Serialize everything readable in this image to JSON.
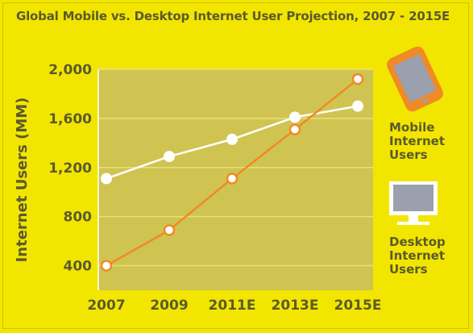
{
  "title": "Global Mobile vs. Desktop Internet User Projection, 2007 - 2015E",
  "colors": {
    "background": "#f2e600",
    "plot_area": "#cfc452",
    "grid": "#e9e07a",
    "text": "#5b5a2c",
    "mobile": "#f08a24",
    "desktop": "#ffffff"
  },
  "legend": {
    "mobile": {
      "label_lines": [
        "Mobile",
        "Internet",
        "Users"
      ],
      "icon": "mobile-phone-icon"
    },
    "desktop": {
      "label_lines": [
        "Desktop",
        "Internet",
        "Users"
      ],
      "icon": "desktop-monitor-icon"
    }
  },
  "chart_data": {
    "type": "line",
    "title": "Global Mobile vs. Desktop Internet User Projection, 2007 - 2015E",
    "xlabel": "",
    "ylabel": "Internet Users (MM)",
    "categories": [
      "2007",
      "2009",
      "2011E",
      "2013E",
      "2015E"
    ],
    "ylim": [
      200,
      2000
    ],
    "yticks": [
      400,
      800,
      1200,
      1600,
      2000
    ],
    "ytick_labels": [
      "400",
      "800",
      "1,200",
      "1,600",
      "2,000"
    ],
    "grid": true,
    "legend_position": "right",
    "series": [
      {
        "name": "Mobile Internet Users",
        "color": "#f08a24",
        "values": [
          400,
          690,
          1110,
          1510,
          1920
        ]
      },
      {
        "name": "Desktop Internet Users",
        "color": "#ffffff",
        "values": [
          1110,
          1290,
          1430,
          1610,
          1700
        ]
      }
    ]
  }
}
